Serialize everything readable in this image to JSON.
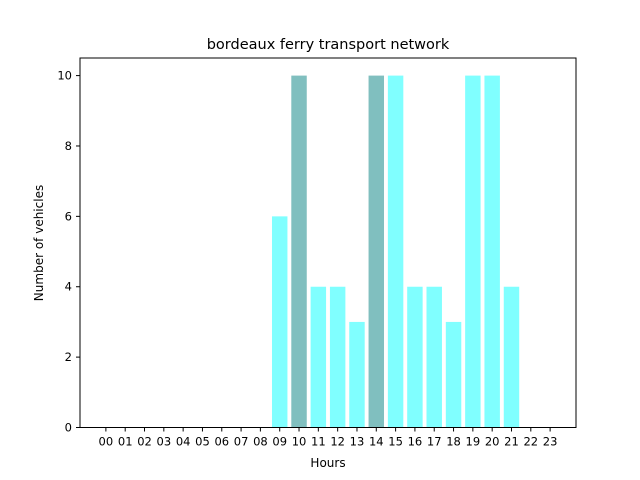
{
  "chart_data": {
    "type": "bar",
    "title": "bordeaux ferry transport network",
    "xlabel": "Hours",
    "ylabel": "Number of vehicles",
    "categories": [
      "00",
      "01",
      "02",
      "03",
      "04",
      "05",
      "06",
      "07",
      "08",
      "09",
      "10",
      "11",
      "12",
      "13",
      "14",
      "15",
      "16",
      "17",
      "18",
      "19",
      "20",
      "21",
      "22",
      "23"
    ],
    "values": [
      0,
      0,
      0,
      0,
      0,
      0,
      0,
      0,
      0,
      6,
      10,
      4,
      4,
      3,
      10,
      10,
      4,
      4,
      3,
      10,
      10,
      4,
      0,
      0
    ],
    "bar_colors": [
      "#80ffff",
      "#80ffff",
      "#80ffff",
      "#80ffff",
      "#80ffff",
      "#80ffff",
      "#80ffff",
      "#80ffff",
      "#80ffff",
      "#80ffff",
      "#80bfbf",
      "#80ffff",
      "#80ffff",
      "#80ffff",
      "#80bfbf",
      "#80ffff",
      "#80ffff",
      "#80ffff",
      "#80ffff",
      "#80ffff",
      "#80ffff",
      "#80ffff",
      "#80ffff",
      "#80ffff"
    ],
    "ylim": [
      0,
      10.5
    ],
    "yticks": [
      0,
      2,
      4,
      6,
      8,
      10
    ],
    "grid": false,
    "legend": "none"
  }
}
